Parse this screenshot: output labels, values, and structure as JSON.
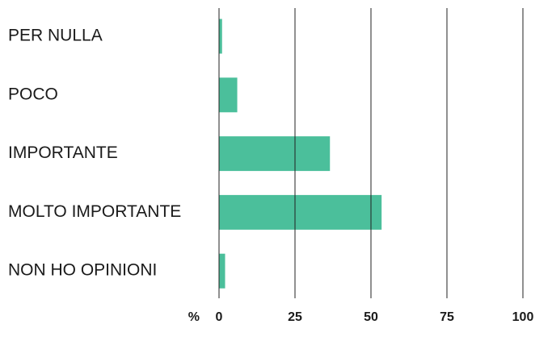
{
  "chart_data": {
    "type": "hbar",
    "x_label": "%",
    "categories": [
      "PER NULLA",
      "POCO",
      "IMPORTANTE",
      "MOLTO IMPORTANTE",
      "NON HO OPINIONI"
    ],
    "values": [
      1,
      6,
      36.5,
      53.5,
      2
    ],
    "color": "#4bbf9b",
    "xlim": [
      0,
      100
    ],
    "xticks": [
      0,
      25,
      50,
      75,
      100
    ],
    "grid": true
  }
}
